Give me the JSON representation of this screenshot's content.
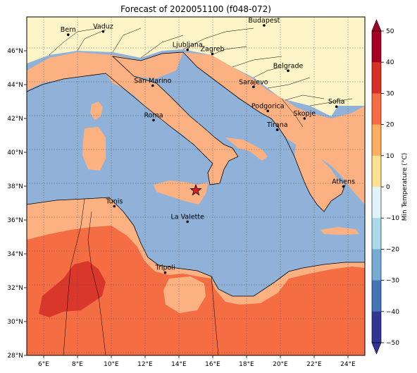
{
  "title": "Forecast of 2020051100 (f048-072)",
  "colors": {
    "sea": "#90b2d8",
    "land_cool": "#fdf5c8",
    "land_mild": "#fcb182",
    "land_warm": "#f46d43",
    "land_hot": "#d9372c",
    "border": "#000000"
  },
  "map": {
    "lon_range": [
      5,
      25
    ],
    "lat_range": [
      28,
      48
    ],
    "lon_ticks": [
      "6°E",
      "8°E",
      "10°E",
      "12°E",
      "14°E",
      "16°E",
      "18°E",
      "20°E",
      "22°E",
      "24°E"
    ],
    "lat_ticks": [
      "28°N",
      "30°N",
      "32°N",
      "34°N",
      "36°N",
      "38°N",
      "40°N",
      "42°N",
      "44°N",
      "46°N"
    ],
    "cities": [
      {
        "name": "Bern",
        "lon": 7.45,
        "lat": 46.95
      },
      {
        "name": "Vaduz",
        "lon": 9.52,
        "lat": 47.14
      },
      {
        "name": "Budapest",
        "lon": 19.04,
        "lat": 47.5
      },
      {
        "name": "Ljubljana",
        "lon": 14.51,
        "lat": 46.06
      },
      {
        "name": "Zagreb",
        "lon": 15.98,
        "lat": 45.81
      },
      {
        "name": "Belgrade",
        "lon": 20.46,
        "lat": 44.82
      },
      {
        "name": "San Marino",
        "lon": 12.45,
        "lat": 43.94
      },
      {
        "name": "Sarajevo",
        "lon": 18.41,
        "lat": 43.86
      },
      {
        "name": "Sofia",
        "lon": 23.32,
        "lat": 42.7
      },
      {
        "name": "Podgorica",
        "lon": 19.26,
        "lat": 42.44
      },
      {
        "name": "Skopje",
        "lon": 21.43,
        "lat": 42.0
      },
      {
        "name": "Roma",
        "lon": 12.5,
        "lat": 41.9
      },
      {
        "name": "Tirana",
        "lon": 19.82,
        "lat": 41.33
      },
      {
        "name": "Athens",
        "lon": 23.73,
        "lat": 37.98
      },
      {
        "name": "Tunis",
        "lon": 10.18,
        "lat": 36.81
      },
      {
        "name": "La Valette",
        "lon": 14.51,
        "lat": 35.9
      },
      {
        "name": "Tripoli",
        "lon": 13.19,
        "lat": 32.89
      }
    ],
    "marker": {
      "lon": 15.0,
      "lat": 37.75,
      "color": "#e41a1c"
    }
  },
  "colorbar": {
    "label": "Min Temperature (°C)",
    "ticks": [
      "50",
      "40",
      "30",
      "20",
      "10",
      "0",
      "−10",
      "−20",
      "−30",
      "−40",
      "−50"
    ],
    "colors": [
      "#a50026",
      "#d73027",
      "#f46d43",
      "#fdae61",
      "#fee090",
      "#e0f3f8",
      "#abd9e9",
      "#74add1",
      "#4575b4",
      "#313695"
    ]
  }
}
